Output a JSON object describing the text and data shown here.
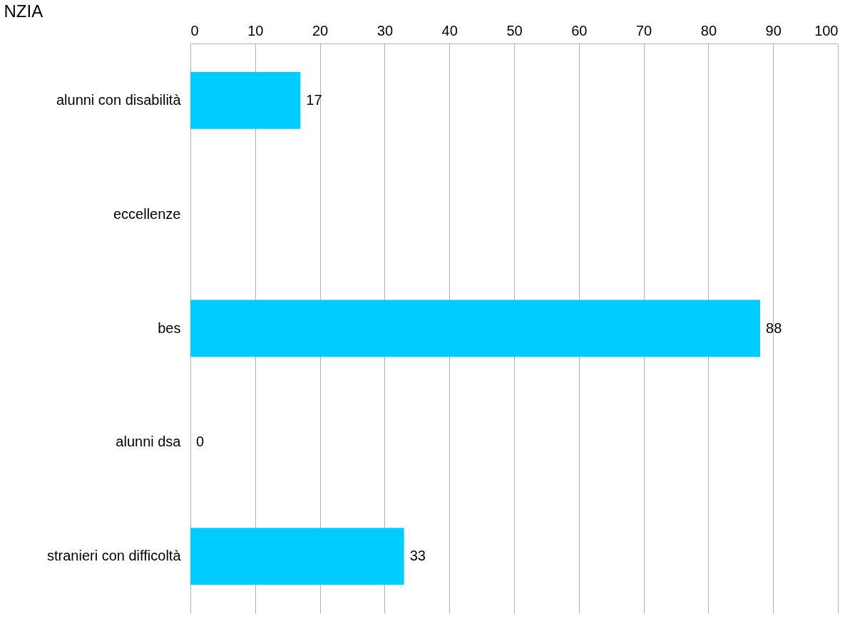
{
  "chart_data": {
    "type": "bar",
    "orientation": "horizontal",
    "title": "NZIA",
    "categories": [
      "alunni con disabilità",
      "eccellenze",
      "bes",
      "alunni dsa",
      "stranieri con difficoltà"
    ],
    "values": [
      17,
      null,
      88,
      0,
      33
    ],
    "value_labels": [
      "17",
      null,
      "88",
      "0",
      "33"
    ],
    "color": "#00ccff",
    "xlim": [
      0,
      100
    ],
    "xticks": [
      0,
      10,
      20,
      30,
      40,
      50,
      60,
      70,
      80,
      90,
      100
    ],
    "grid": "x"
  }
}
